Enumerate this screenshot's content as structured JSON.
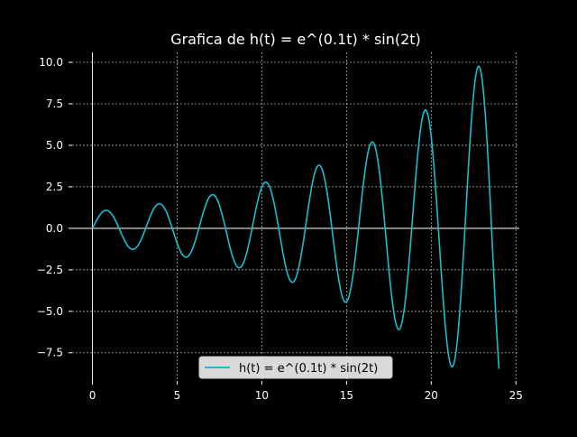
{
  "chart_data": {
    "type": "line",
    "title": "Grafica de h(t) = e^(0.1t) * sin(2t)",
    "xlabel": "",
    "ylabel": "",
    "xlim": [
      -1.2,
      25.2
    ],
    "ylim": [
      -9.2,
      10.6
    ],
    "x_ticks": [
      0,
      5,
      10,
      15,
      20,
      25
    ],
    "x_tick_labels": [
      "0",
      "5",
      "10",
      "15",
      "20",
      "25"
    ],
    "y_ticks": [
      -7.5,
      -5.0,
      -2.5,
      0.0,
      2.5,
      5.0,
      7.5,
      10.0
    ],
    "y_tick_labels": [
      "−7.5",
      "−5.0",
      "−2.5",
      "0.0",
      "2.5",
      "5.0",
      "7.5",
      "10.0"
    ],
    "grid": true,
    "grid_style": "dashed",
    "legend_position": "lower-center",
    "background_color": "#000000",
    "axes_color": "#ffffff",
    "series": [
      {
        "name": "h(t) = e^(0.1t) * sin(2t)",
        "color": "#17becf",
        "expression": "exp(0.1*t) * sin(2*t)",
        "x_range": [
          0,
          24
        ],
        "samples": 600,
        "key_points": [
          {
            "x": 0,
            "y": 0.0
          },
          {
            "x": 0.83,
            "y": 1.08
          },
          {
            "x": 2.4,
            "y": -1.25
          },
          {
            "x": 3.97,
            "y": 1.47
          },
          {
            "x": 5.54,
            "y": -1.72
          },
          {
            "x": 7.11,
            "y": 2.01
          },
          {
            "x": 8.68,
            "y": -2.35
          },
          {
            "x": 10.25,
            "y": 2.75
          },
          {
            "x": 11.82,
            "y": -3.22
          },
          {
            "x": 13.39,
            "y": 3.77
          },
          {
            "x": 14.96,
            "y": -4.41
          },
          {
            "x": 16.53,
            "y": 5.16
          },
          {
            "x": 18.1,
            "y": -6.04
          },
          {
            "x": 19.67,
            "y": 7.07
          },
          {
            "x": 21.24,
            "y": -8.27
          },
          {
            "x": 22.81,
            "y": 9.68
          },
          {
            "x": 24.0,
            "y": -8.47
          }
        ]
      }
    ]
  }
}
